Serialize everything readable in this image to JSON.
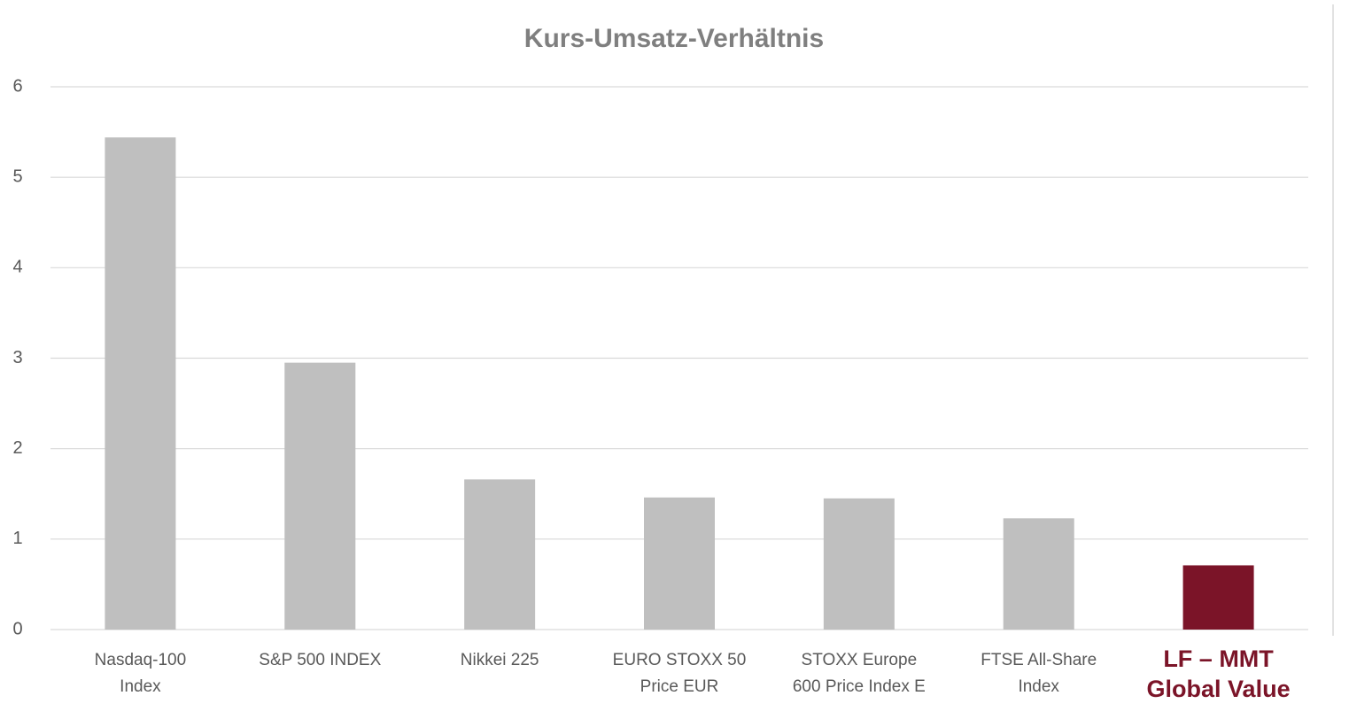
{
  "chart_data": {
    "type": "bar",
    "title": "Kurs-Umsatz-Verhältnis",
    "categories": [
      "Nasdaq-100\nIndex",
      "S&P 500 INDEX",
      "Nikkei 225",
      "EURO STOXX 50\nPrice EUR",
      "STOXX Europe\n600 Price Index E",
      "FTSE All-Share\nIndex",
      "LF – MMT\nGlobal Value"
    ],
    "values": [
      5.44,
      2.95,
      1.66,
      1.46,
      1.45,
      1.23,
      0.71
    ],
    "color": "#bfbfbf",
    "highlight_color": "#7b1428",
    "highlight": [
      false,
      false,
      false,
      false,
      false,
      false,
      true
    ],
    "ylim": [
      0,
      6
    ],
    "yticks": [
      0,
      1,
      2,
      3,
      4,
      5,
      6
    ],
    "grid": true
  }
}
